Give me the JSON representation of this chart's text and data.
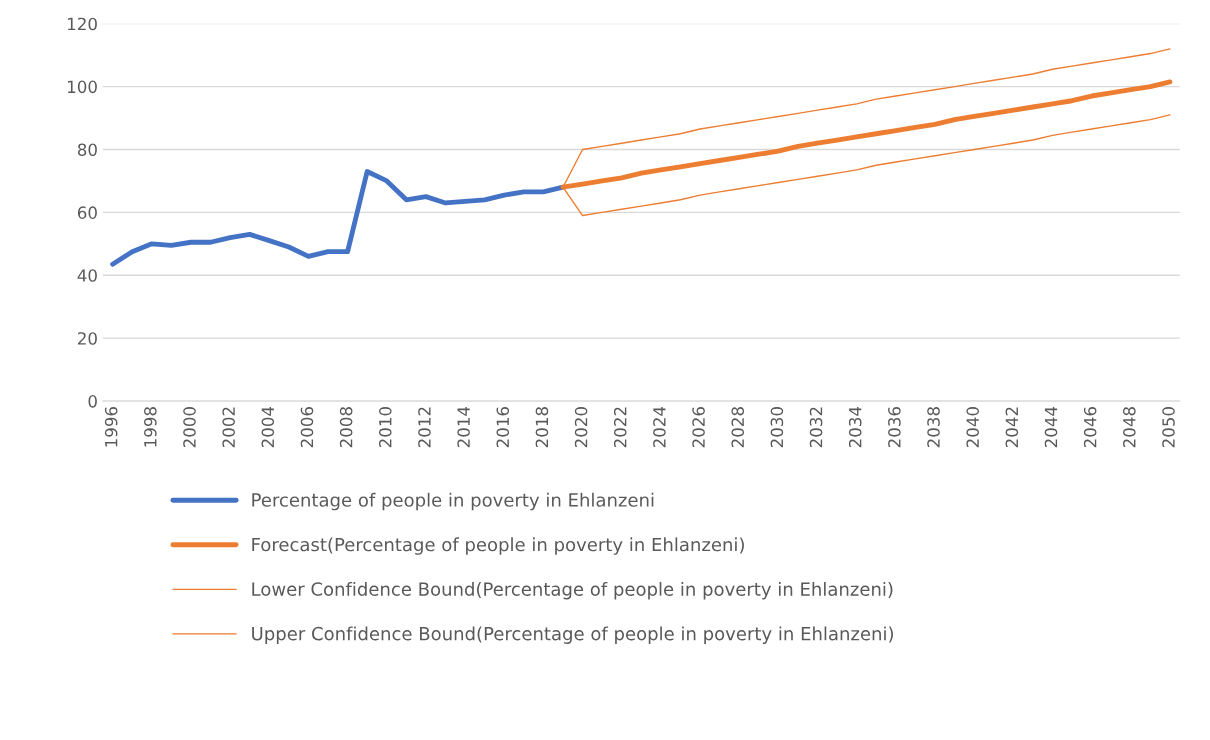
{
  "chart_data": {
    "type": "line",
    "categories": [
      "1996",
      null,
      "1998",
      null,
      "2000",
      null,
      "2002",
      null,
      "2004",
      null,
      "2006",
      null,
      "2008",
      null,
      "2010",
      null,
      "2012",
      null,
      "2014",
      null,
      "2016",
      null,
      "2018",
      null,
      "2020",
      null,
      "2022",
      null,
      "2024",
      null,
      "2026",
      null,
      "2028",
      null,
      "2030",
      null,
      "2032",
      null,
      "2034",
      null,
      "2036",
      null,
      "2038",
      null,
      "2040",
      null,
      "2042",
      null,
      "2044",
      null,
      "2046",
      null,
      "2048",
      null,
      "2050"
    ],
    "series": [
      {
        "name": "Percentage of people in poverty in Ehlanzeni",
        "color": "#4472c4",
        "values": [
          43.5,
          47.5,
          50,
          49.5,
          50.5,
          50.5,
          52,
          53,
          51,
          49,
          46,
          47.5,
          47.5,
          73,
          70,
          64,
          65,
          63,
          63.5,
          64,
          65.5,
          66.5,
          66.5,
          68,
          null,
          null,
          null,
          null,
          null,
          null,
          null,
          null,
          null,
          null,
          null,
          null,
          null,
          null,
          null,
          null,
          null,
          null,
          null,
          null,
          null,
          null,
          null,
          null,
          null,
          null,
          null,
          null,
          null,
          null,
          null
        ]
      },
      {
        "name": "Forecast(Percentage of people in poverty in Ehlanzeni)",
        "color": "#ed7d31",
        "values": [
          null,
          null,
          null,
          null,
          null,
          null,
          null,
          null,
          null,
          null,
          null,
          null,
          null,
          null,
          null,
          null,
          null,
          null,
          null,
          null,
          null,
          null,
          null,
          68,
          69,
          70,
          71,
          72.5,
          73.5,
          74.5,
          75.5,
          76.5,
          77.5,
          78.5,
          79.5,
          81,
          82,
          83,
          84,
          85,
          86,
          87,
          88,
          89.5,
          90.5,
          91.5,
          92.5,
          93.5,
          94.5,
          95.5,
          97,
          98,
          99,
          100,
          101.5
        ]
      },
      {
        "name": "Lower Confidence Bound(Percentage of people in poverty in Ehlanzeni)",
        "color": "#ed7d31",
        "values": [
          null,
          null,
          null,
          null,
          null,
          null,
          null,
          null,
          null,
          null,
          null,
          null,
          null,
          null,
          null,
          null,
          null,
          null,
          null,
          null,
          null,
          null,
          null,
          68,
          59,
          60,
          61,
          62,
          63,
          64,
          65.5,
          66.5,
          67.5,
          68.5,
          69.5,
          70.5,
          71.5,
          72.5,
          73.5,
          75,
          76,
          77,
          78,
          79,
          80,
          81,
          82,
          83,
          84.5,
          85.5,
          86.5,
          87.5,
          88.5,
          89.5,
          91
        ]
      },
      {
        "name": "Upper Confidence Bound(Percentage of people in poverty in Ehlanzeni)",
        "color": "#ed7d31",
        "values": [
          null,
          null,
          null,
          null,
          null,
          null,
          null,
          null,
          null,
          null,
          null,
          null,
          null,
          null,
          null,
          null,
          null,
          null,
          null,
          null,
          null,
          null,
          null,
          68,
          80,
          81,
          82,
          83,
          84,
          85,
          86.5,
          87.5,
          88.5,
          89.5,
          90.5,
          91.5,
          92.5,
          93.5,
          94.5,
          96,
          97,
          98,
          99,
          100,
          101,
          102,
          103,
          104,
          105.5,
          106.5,
          107.5,
          108.5,
          109.5,
          110.5,
          112
        ]
      }
    ],
    "ylim": [
      0,
      120
    ],
    "yticks": [
      0,
      20,
      40,
      60,
      80,
      100,
      120
    ],
    "grid": "y",
    "legend": "bottom",
    "marker": "none",
    "line_style": "solid"
  }
}
